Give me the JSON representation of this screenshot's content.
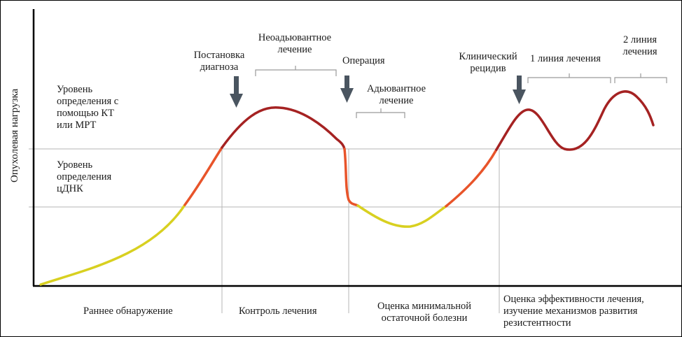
{
  "y_axis_label": "Опухолевая нагрузка",
  "levels": {
    "ct_mri": [
      "Уровень",
      "определения с",
      "помощью КТ",
      "или МРТ"
    ],
    "ctdna": [
      "Уровень",
      "определения",
      "цДНК"
    ]
  },
  "events": {
    "diagnosis": [
      "Постановка",
      "диагноза"
    ],
    "neoadjuvant": [
      "Неоадьювантное",
      "лечение"
    ],
    "operation": "Операция",
    "adjuvant": [
      "Адьювантное",
      "лечение"
    ],
    "relapse": [
      "Клинический",
      "рецидив"
    ],
    "line1": "1 линия лечения",
    "line2": [
      "2 линия",
      "лечения"
    ]
  },
  "phases": {
    "early": "Раннее обнаружение",
    "control": "Контроль лечения",
    "mrd": [
      "Оценка минимальной",
      "остаточной болезни"
    ],
    "efficacy": [
      "Оценка эффективности лечения,",
      "изучение механизмов развития",
      "резистентности"
    ]
  },
  "colors": {
    "yellow": "#d8d020",
    "orange": "#e8542a",
    "darkred": "#a52222",
    "arrow": "#4a5560",
    "grid": "#b5b5b5"
  }
}
